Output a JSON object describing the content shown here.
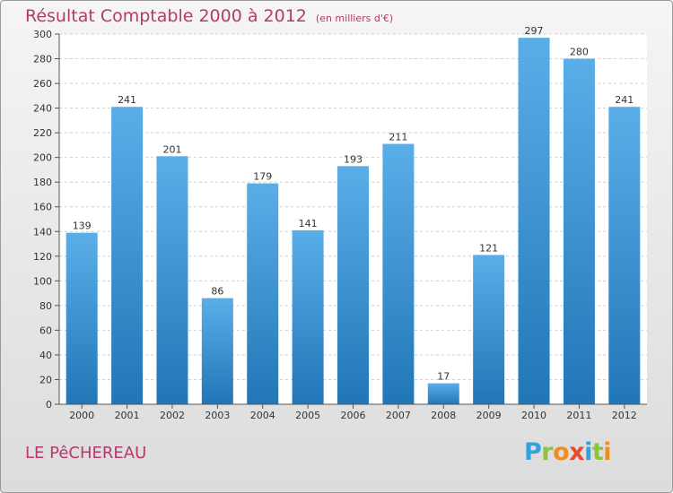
{
  "chart_data": {
    "type": "bar",
    "title": "Résultat Comptable 2000 à 2012",
    "unit_note": "(en milliers d'€)",
    "categories": [
      "2000",
      "2001",
      "2002",
      "2003",
      "2004",
      "2005",
      "2006",
      "2007",
      "2008",
      "2009",
      "2010",
      "2011",
      "2012"
    ],
    "values": [
      139,
      241,
      201,
      86,
      179,
      141,
      193,
      211,
      17,
      121,
      297,
      280,
      241
    ],
    "data_labels": [
      "139",
      "241",
      "201",
      "86",
      "179",
      "141",
      "193",
      "211",
      "17",
      "121",
      "297",
      "280",
      "241"
    ],
    "ylim": [
      0,
      300
    ],
    "yticks": [
      0,
      20,
      40,
      60,
      80,
      100,
      120,
      140,
      160,
      180,
      200,
      220,
      240,
      260,
      280,
      300
    ],
    "xlabel": "",
    "ylabel": "",
    "grid": true,
    "legend": "none",
    "colors": {
      "bar_top": "#5aaee8",
      "bar_bottom": "#2176b8",
      "title": "#b5396b",
      "plot_bg": "#ffffff"
    }
  },
  "footer": {
    "commune": "LE PêCHEREAU",
    "logo_letters": [
      {
        "ch": "P",
        "color": "#2ea3dd"
      },
      {
        "ch": "r",
        "color": "#8cc43f"
      },
      {
        "ch": "o",
        "color": "#f28c1f"
      },
      {
        "ch": "x",
        "color": "#e8482d"
      },
      {
        "ch": "i",
        "color": "#2ea3dd"
      },
      {
        "ch": "t",
        "color": "#8cc43f"
      },
      {
        "ch": "i",
        "color": "#f28c1f"
      }
    ]
  }
}
